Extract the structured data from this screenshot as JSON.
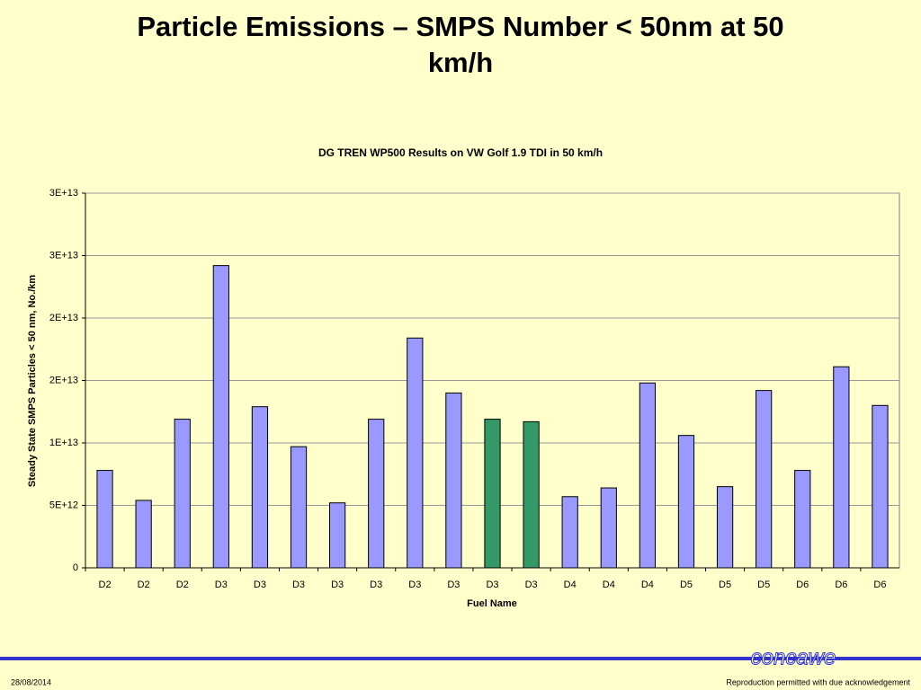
{
  "slide_title": "Particle Emissions – SMPS Number < 50nm at 50 km/h",
  "footer_date": "28/08/2014",
  "footer_note": "Reproduction permitted with due acknowledgement",
  "logo": "concawe",
  "chart_data": {
    "type": "bar",
    "title": "DG TREN WP500 Results on VW Golf 1.9 TDI in 50 km/h",
    "x_label": "Fuel Name",
    "y_label": "Steady State SMPS Particles < 50 nm, No./km",
    "categories": [
      "D2",
      "D2",
      "D2",
      "D3",
      "D3",
      "D3",
      "D3",
      "D3",
      "D3",
      "D3",
      "D3",
      "D3",
      "D4",
      "D4",
      "D4",
      "D5",
      "D5",
      "D5",
      "D6",
      "D6",
      "D6"
    ],
    "values": [
      7800000000000.0,
      5400000000000.0,
      11900000000000.0,
      24200000000000.0,
      12900000000000.0,
      9700000000000.0,
      5200000000000.0,
      11900000000000.0,
      18400000000000.0,
      14000000000000.0,
      11900000000000.0,
      11700000000000.0,
      5700000000000.0,
      6400000000000.0,
      14800000000000.0,
      10600000000000.0,
      6500000000000.0,
      14200000000000.0,
      7800000000000.0,
      16100000000000.0,
      13000000000000.0
    ],
    "colors": [
      "#9999ff",
      "#9999ff",
      "#9999ff",
      "#9999ff",
      "#9999ff",
      "#9999ff",
      "#9999ff",
      "#9999ff",
      "#9999ff",
      "#9999ff",
      "#339966",
      "#339966",
      "#9999ff",
      "#9999ff",
      "#9999ff",
      "#9999ff",
      "#9999ff",
      "#9999ff",
      "#9999ff",
      "#9999ff",
      "#9999ff"
    ],
    "ylim": [
      0,
      30000000000000.0
    ],
    "yticks": [
      0,
      {
        "value": 5000000000000.0,
        "label": "5E+12"
      },
      {
        "value": 10000000000000.0,
        "label": "1E+13"
      },
      {
        "value": 15000000000000.0,
        "label": "2E+13"
      },
      {
        "value": 20000000000000.0,
        "label": "2E+13"
      },
      {
        "value": 25000000000000.0,
        "label": "3E+13"
      },
      {
        "value": 30000000000000.0,
        "label": "3E+13"
      }
    ],
    "grid": true
  }
}
